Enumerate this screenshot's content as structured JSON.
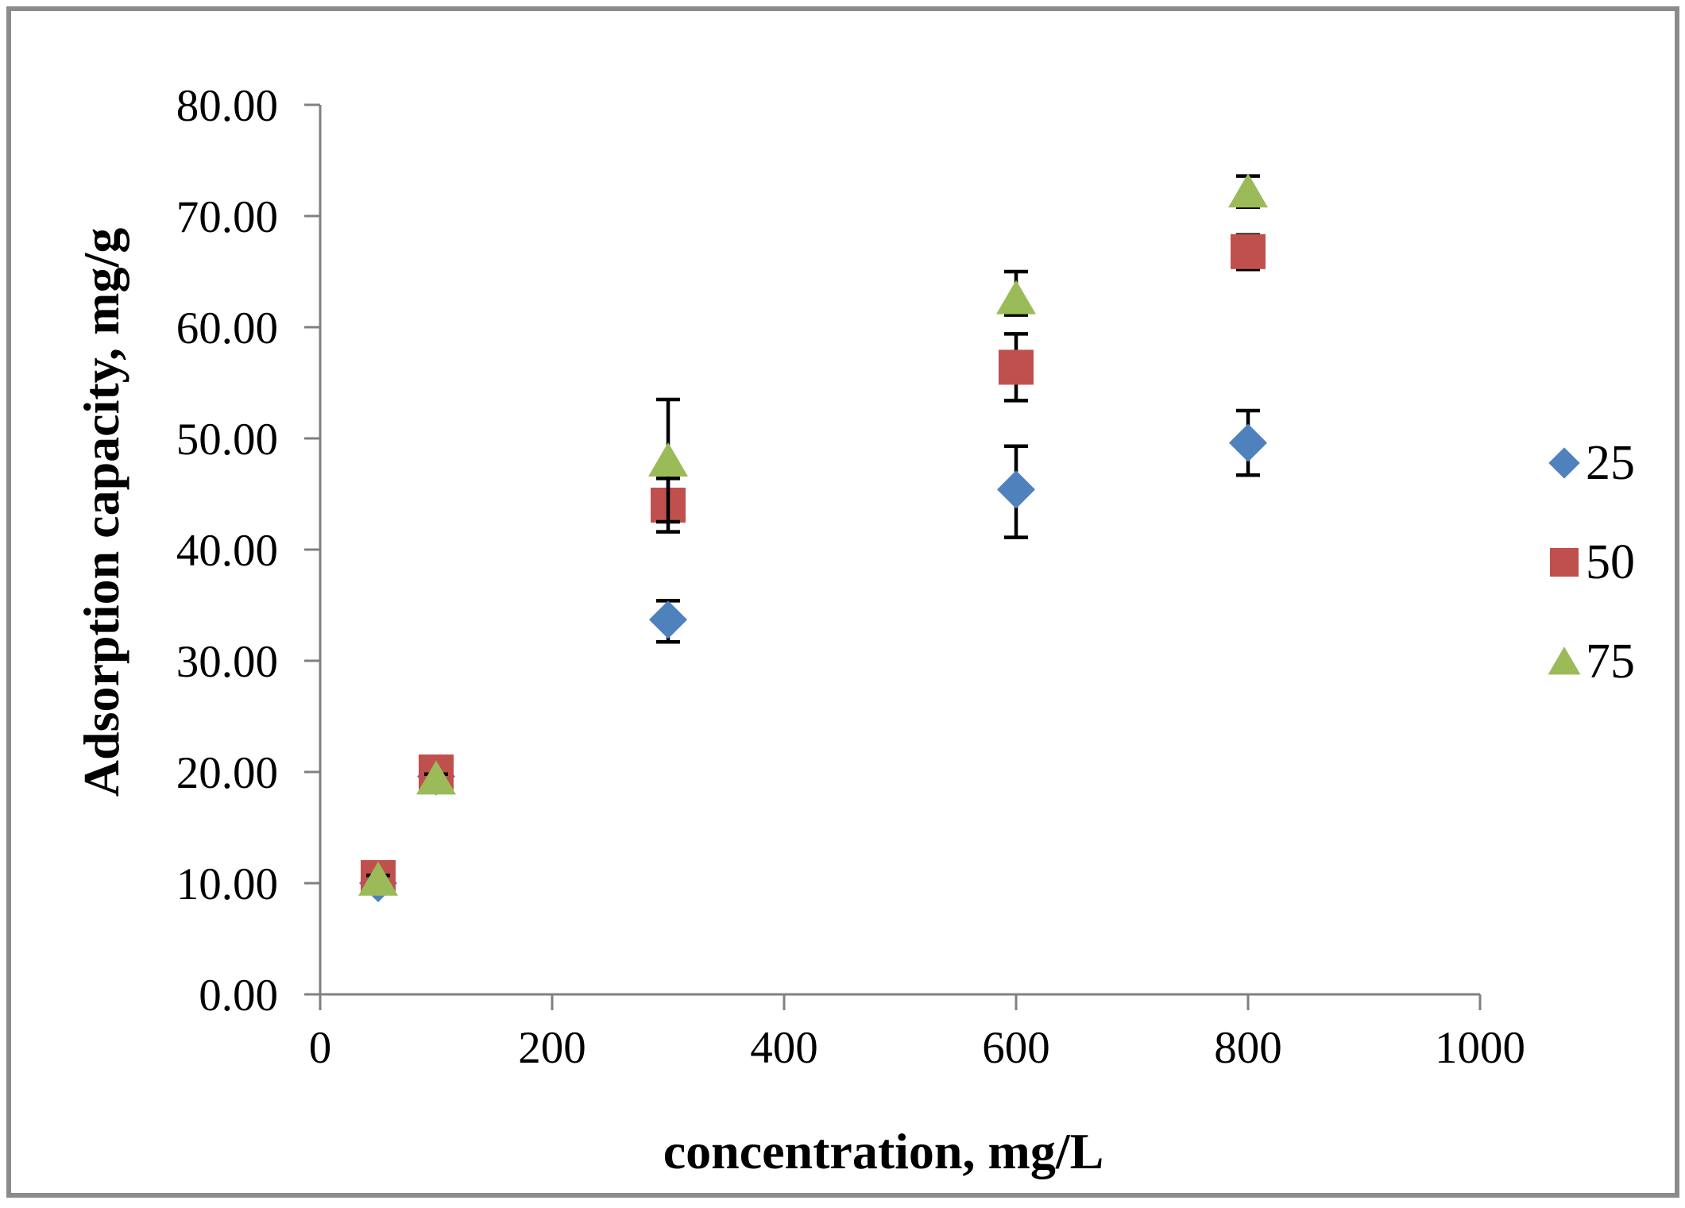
{
  "figure": {
    "background": "#ffffff",
    "border_color": "#8b8b8b",
    "axis_color": "#808080",
    "errorbar_color": "#000000",
    "tick_label_color": "#000000"
  },
  "chart_data": {
    "type": "scatter",
    "title": "",
    "xlabel": "concentration, mg/L",
    "ylabel": "Adsorption capacity, mg/g",
    "xlim": [
      0,
      1000
    ],
    "ylim": [
      0,
      80
    ],
    "xticks": [
      0,
      200,
      400,
      600,
      800,
      1000
    ],
    "xtick_labels": [
      "0",
      "200",
      "400",
      "600",
      "800",
      "1000"
    ],
    "yticks": [
      0,
      10,
      20,
      30,
      40,
      50,
      60,
      70,
      80
    ],
    "ytick_labels": [
      "0.00",
      "10.00",
      "20.00",
      "30.00",
      "40.00",
      "50.00",
      "60.00",
      "70.00",
      "80.00"
    ],
    "grid": false,
    "legend_position": "right",
    "series": [
      {
        "name": "25",
        "marker": "diamond",
        "color": "#4F81BD",
        "x": [
          50,
          100,
          300,
          600,
          800
        ],
        "y": [
          10.0,
          19.6,
          33.7,
          45.4,
          49.6
        ],
        "yerr_up": [
          0.4,
          0.4,
          1.7,
          3.9,
          2.9
        ],
        "yerr_down": [
          0.4,
          0.4,
          2.0,
          4.3,
          2.9
        ]
      },
      {
        "name": "50",
        "marker": "square",
        "color": "#C0504D",
        "x": [
          50,
          100,
          300,
          600,
          800
        ],
        "y": [
          10.5,
          20.0,
          44.0,
          56.4,
          66.8
        ],
        "yerr_up": [
          0.4,
          0.4,
          2.4,
          3.0,
          1.5
        ],
        "yerr_down": [
          0.4,
          0.4,
          2.4,
          3.0,
          1.6
        ]
      },
      {
        "name": "75",
        "marker": "triangle",
        "color": "#9BBB59",
        "x": [
          50,
          100,
          300,
          600,
          800
        ],
        "y": [
          10.3,
          19.4,
          48.0,
          62.6,
          72.2
        ],
        "yerr_up": [
          0.4,
          0.4,
          5.5,
          2.4,
          1.4
        ],
        "yerr_down": [
          0.4,
          0.4,
          5.5,
          1.5,
          1.4
        ]
      }
    ]
  }
}
